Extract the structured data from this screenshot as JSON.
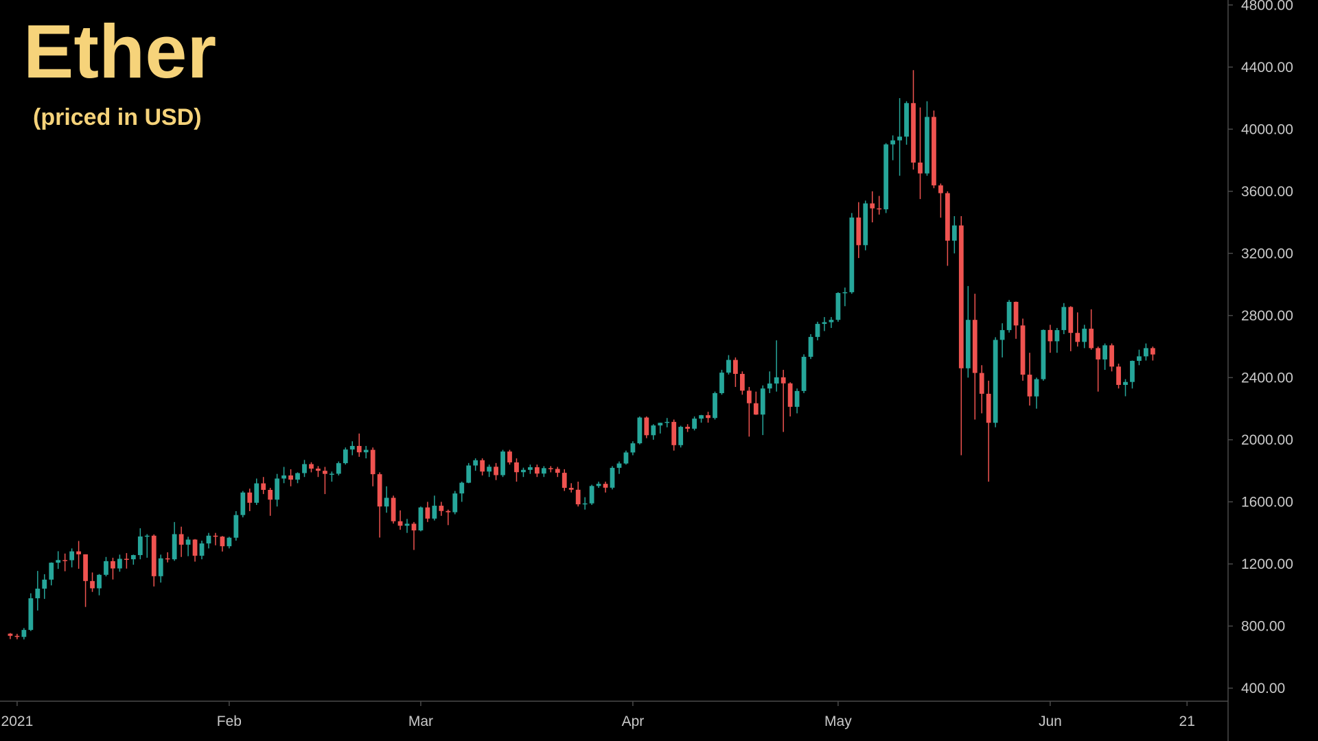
{
  "chart_data": {
    "type": "candlestick",
    "title": "Ether",
    "subtitle": "(priced in USD)",
    "up_color": "#26a69a",
    "down_color": "#ef5350",
    "title_color": "#f6d37a",
    "xlim": [
      -2.5,
      177
    ],
    "xticks": [
      {
        "value": 0,
        "label": "2021"
      },
      {
        "value": 31,
        "label": "Feb"
      },
      {
        "value": 59,
        "label": "Mar"
      },
      {
        "value": 90,
        "label": "Apr"
      },
      {
        "value": 120,
        "label": "May"
      },
      {
        "value": 151,
        "label": "Jun"
      },
      {
        "value": 171,
        "label": "21"
      }
    ],
    "ylim": [
      316,
      4832
    ],
    "yticks": [
      {
        "value": 400,
        "label": "400.00"
      },
      {
        "value": 800,
        "label": "800.00"
      },
      {
        "value": 1200,
        "label": "1200.00"
      },
      {
        "value": 1600,
        "label": "1600.00"
      },
      {
        "value": 2000,
        "label": "2000.00"
      },
      {
        "value": 2400,
        "label": "2400.00"
      },
      {
        "value": 2800,
        "label": "2800.00"
      },
      {
        "value": 3200,
        "label": "3200.00"
      },
      {
        "value": 3600,
        "label": "3600.00"
      },
      {
        "value": 4000,
        "label": "4000.00"
      },
      {
        "value": 4400,
        "label": "4400.00"
      },
      {
        "value": 4800,
        "label": "4800.00"
      }
    ],
    "x": [
      -1,
      0,
      1,
      2,
      3,
      4,
      5,
      6,
      7,
      8,
      9,
      10,
      11,
      12,
      13,
      14,
      15,
      16,
      17,
      18,
      19,
      20,
      21,
      22,
      23,
      24,
      25,
      26,
      27,
      28,
      29,
      30,
      31,
      32,
      33,
      34,
      35,
      36,
      37,
      38,
      39,
      40,
      41,
      42,
      43,
      44,
      45,
      46,
      47,
      48,
      49,
      50,
      51,
      52,
      53,
      54,
      55,
      56,
      57,
      58,
      59,
      60,
      61,
      62,
      63,
      64,
      65,
      66,
      67,
      68,
      69,
      70,
      71,
      72,
      73,
      74,
      75,
      76,
      77,
      78,
      79,
      80,
      81,
      82,
      83,
      84,
      85,
      86,
      87,
      88,
      89,
      90,
      91,
      92,
      93,
      94,
      95,
      96,
      97,
      98,
      99,
      100,
      101,
      102,
      103,
      104,
      105,
      106,
      107,
      108,
      109,
      110,
      111,
      112,
      113,
      114,
      115,
      116,
      117,
      118,
      119,
      120,
      121,
      122,
      123,
      124,
      125,
      126,
      127,
      128,
      129,
      130,
      131,
      132,
      133,
      134,
      135,
      136,
      137,
      138,
      139,
      140,
      141,
      142,
      143,
      144,
      145,
      146,
      147,
      148,
      149,
      150,
      151,
      152,
      153,
      154,
      155,
      156,
      157,
      158,
      159,
      160,
      161,
      162,
      163,
      164,
      165,
      166
    ],
    "candles": [
      [
        751,
        755,
        716,
        737
      ],
      [
        737,
        750,
        715,
        730
      ],
      [
        730,
        787,
        714,
        775
      ],
      [
        775,
        1011,
        768,
        979
      ],
      [
        979,
        1155,
        900,
        1041
      ],
      [
        1041,
        1134,
        975,
        1099
      ],
      [
        1099,
        1210,
        1062,
        1208
      ],
      [
        1208,
        1282,
        1168,
        1225
      ],
      [
        1225,
        1267,
        1153,
        1224
      ],
      [
        1224,
        1300,
        1178,
        1281
      ],
      [
        1281,
        1348,
        1169,
        1262
      ],
      [
        1262,
        1262,
        923,
        1090
      ],
      [
        1090,
        1145,
        1020,
        1043
      ],
      [
        1043,
        1135,
        998,
        1130
      ],
      [
        1130,
        1245,
        1120,
        1218
      ],
      [
        1218,
        1240,
        1100,
        1171
      ],
      [
        1171,
        1260,
        1150,
        1233
      ],
      [
        1233,
        1270,
        1170,
        1230
      ],
      [
        1230,
        1260,
        1195,
        1257
      ],
      [
        1257,
        1430,
        1230,
        1377
      ],
      [
        1377,
        1392,
        1240,
        1382
      ],
      [
        1382,
        1390,
        1055,
        1121
      ],
      [
        1121,
        1260,
        1080,
        1236
      ],
      [
        1236,
        1275,
        1210,
        1230
      ],
      [
        1230,
        1470,
        1220,
        1392
      ],
      [
        1392,
        1440,
        1245,
        1324
      ],
      [
        1324,
        1375,
        1250,
        1357
      ],
      [
        1357,
        1360,
        1215,
        1253
      ],
      [
        1253,
        1350,
        1230,
        1332
      ],
      [
        1332,
        1400,
        1300,
        1382
      ],
      [
        1382,
        1400,
        1320,
        1376
      ],
      [
        1376,
        1380,
        1280,
        1314
      ],
      [
        1314,
        1375,
        1300,
        1369
      ],
      [
        1369,
        1540,
        1350,
        1515
      ],
      [
        1515,
        1670,
        1500,
        1660
      ],
      [
        1660,
        1685,
        1540,
        1594
      ],
      [
        1594,
        1750,
        1580,
        1719
      ],
      [
        1719,
        1760,
        1650,
        1677
      ],
      [
        1677,
        1690,
        1510,
        1614
      ],
      [
        1614,
        1780,
        1570,
        1750
      ],
      [
        1750,
        1825,
        1720,
        1770
      ],
      [
        1770,
        1810,
        1700,
        1743
      ],
      [
        1743,
        1790,
        1720,
        1785
      ],
      [
        1785,
        1870,
        1760,
        1843
      ],
      [
        1843,
        1855,
        1790,
        1814
      ],
      [
        1814,
        1830,
        1760,
        1800
      ],
      [
        1800,
        1825,
        1650,
        1780
      ],
      [
        1780,
        1795,
        1730,
        1781
      ],
      [
        1781,
        1860,
        1770,
        1849
      ],
      [
        1849,
        1950,
        1840,
        1937
      ],
      [
        1937,
        1990,
        1900,
        1960
      ],
      [
        1960,
        2040,
        1890,
        1919
      ],
      [
        1919,
        1960,
        1880,
        1935
      ],
      [
        1935,
        1950,
        1700,
        1778
      ],
      [
        1778,
        1790,
        1370,
        1570
      ],
      [
        1570,
        1700,
        1530,
        1626
      ],
      [
        1626,
        1640,
        1460,
        1475
      ],
      [
        1475,
        1545,
        1420,
        1446
      ],
      [
        1446,
        1490,
        1400,
        1459
      ],
      [
        1459,
        1470,
        1290,
        1416
      ],
      [
        1416,
        1570,
        1410,
        1564
      ],
      [
        1564,
        1600,
        1470,
        1492
      ],
      [
        1492,
        1640,
        1480,
        1575
      ],
      [
        1575,
        1600,
        1510,
        1541
      ],
      [
        1541,
        1550,
        1450,
        1533
      ],
      [
        1533,
        1670,
        1520,
        1654
      ],
      [
        1654,
        1730,
        1600,
        1723
      ],
      [
        1723,
        1850,
        1720,
        1834
      ],
      [
        1834,
        1880,
        1800,
        1868
      ],
      [
        1868,
        1880,
        1770,
        1795
      ],
      [
        1795,
        1840,
        1760,
        1826
      ],
      [
        1826,
        1850,
        1740,
        1772
      ],
      [
        1772,
        1935,
        1760,
        1924
      ],
      [
        1924,
        1935,
        1840,
        1854
      ],
      [
        1854,
        1880,
        1730,
        1791
      ],
      [
        1791,
        1820,
        1760,
        1806
      ],
      [
        1806,
        1840,
        1780,
        1823
      ],
      [
        1823,
        1840,
        1760,
        1782
      ],
      [
        1782,
        1830,
        1760,
        1817
      ],
      [
        1817,
        1830,
        1790,
        1812
      ],
      [
        1812,
        1825,
        1760,
        1787
      ],
      [
        1787,
        1810,
        1670,
        1690
      ],
      [
        1690,
        1720,
        1660,
        1678
      ],
      [
        1678,
        1730,
        1570,
        1584
      ],
      [
        1584,
        1630,
        1550,
        1590
      ],
      [
        1590,
        1710,
        1580,
        1702
      ],
      [
        1702,
        1730,
        1690,
        1716
      ],
      [
        1716,
        1730,
        1660,
        1691
      ],
      [
        1691,
        1830,
        1680,
        1819
      ],
      [
        1819,
        1860,
        1780,
        1847
      ],
      [
        1847,
        1930,
        1840,
        1918
      ],
      [
        1918,
        1990,
        1900,
        1977
      ],
      [
        1977,
        2150,
        1970,
        2143
      ],
      [
        2143,
        2150,
        2010,
        2029
      ],
      [
        2029,
        2100,
        2000,
        2092
      ],
      [
        2092,
        2110,
        2040,
        2109
      ],
      [
        2109,
        2140,
        2080,
        2115
      ],
      [
        2115,
        2130,
        1930,
        1965
      ],
      [
        1965,
        2090,
        1950,
        2083
      ],
      [
        2083,
        2100,
        2050,
        2071
      ],
      [
        2071,
        2150,
        2060,
        2136
      ],
      [
        2136,
        2160,
        2110,
        2158
      ],
      [
        2158,
        2180,
        2110,
        2140
      ],
      [
        2140,
        2310,
        2130,
        2300
      ],
      [
        2300,
        2450,
        2290,
        2432
      ],
      [
        2432,
        2545,
        2420,
        2514
      ],
      [
        2514,
        2530,
        2340,
        2424
      ],
      [
        2424,
        2440,
        2290,
        2316
      ],
      [
        2316,
        2340,
        2020,
        2235
      ],
      [
        2235,
        2310,
        2160,
        2162
      ],
      [
        2162,
        2350,
        2030,
        2330
      ],
      [
        2330,
        2440,
        2300,
        2362
      ],
      [
        2362,
        2640,
        2310,
        2402
      ],
      [
        2402,
        2450,
        2050,
        2363
      ],
      [
        2363,
        2370,
        2150,
        2212
      ],
      [
        2212,
        2330,
        2170,
        2314
      ],
      [
        2314,
        2550,
        2300,
        2534
      ],
      [
        2534,
        2680,
        2520,
        2662
      ],
      [
        2662,
        2760,
        2640,
        2746
      ],
      [
        2746,
        2790,
        2700,
        2757
      ],
      [
        2757,
        2790,
        2720,
        2772
      ],
      [
        2772,
        2950,
        2760,
        2945
      ],
      [
        2945,
        2980,
        2860,
        2950
      ],
      [
        2950,
        3460,
        2940,
        3431
      ],
      [
        3431,
        3530,
        3170,
        3253
      ],
      [
        3253,
        3540,
        3220,
        3522
      ],
      [
        3522,
        3600,
        3400,
        3490
      ],
      [
        3490,
        3570,
        3450,
        3484
      ],
      [
        3484,
        3910,
        3460,
        3902
      ],
      [
        3902,
        3960,
        3800,
        3928
      ],
      [
        3928,
        4200,
        3700,
        3952
      ],
      [
        3952,
        4180,
        3900,
        4168
      ],
      [
        4168,
        4380,
        3740,
        3785
      ],
      [
        3785,
        4140,
        3550,
        3715
      ],
      [
        3715,
        4180,
        3700,
        4079
      ],
      [
        4079,
        4120,
        3620,
        3638
      ],
      [
        3638,
        3650,
        3430,
        3588
      ],
      [
        3588,
        3600,
        3120,
        3282
      ],
      [
        3282,
        3440,
        3200,
        3380
      ],
      [
        3380,
        3440,
        1900,
        2460
      ],
      [
        2460,
        2990,
        2400,
        2772
      ],
      [
        2772,
        2940,
        2130,
        2430
      ],
      [
        2430,
        2480,
        2170,
        2296
      ],
      [
        2296,
        2380,
        1730,
        2109
      ],
      [
        2109,
        2660,
        2080,
        2643
      ],
      [
        2643,
        2750,
        2530,
        2706
      ],
      [
        2706,
        2900,
        2690,
        2888
      ],
      [
        2888,
        2890,
        2650,
        2736
      ],
      [
        2736,
        2780,
        2380,
        2419
      ],
      [
        2419,
        2560,
        2220,
        2279
      ],
      [
        2279,
        2400,
        2200,
        2390
      ],
      [
        2390,
        2710,
        2380,
        2707
      ],
      [
        2707,
        2740,
        2560,
        2634
      ],
      [
        2634,
        2720,
        2560,
        2706
      ],
      [
        2706,
        2880,
        2680,
        2855
      ],
      [
        2855,
        2860,
        2570,
        2688
      ],
      [
        2688,
        2820,
        2600,
        2630
      ],
      [
        2630,
        2740,
        2590,
        2715
      ],
      [
        2715,
        2840,
        2580,
        2590
      ],
      [
        2590,
        2600,
        2310,
        2517
      ],
      [
        2517,
        2620,
        2450,
        2608
      ],
      [
        2608,
        2620,
        2440,
        2471
      ],
      [
        2471,
        2490,
        2330,
        2353
      ],
      [
        2353,
        2390,
        2280,
        2372
      ],
      [
        2372,
        2510,
        2330,
        2508
      ],
      [
        2508,
        2580,
        2480,
        2537
      ],
      [
        2537,
        2620,
        2510,
        2590
      ],
      [
        2590,
        2600,
        2510,
        2549
      ]
    ]
  }
}
